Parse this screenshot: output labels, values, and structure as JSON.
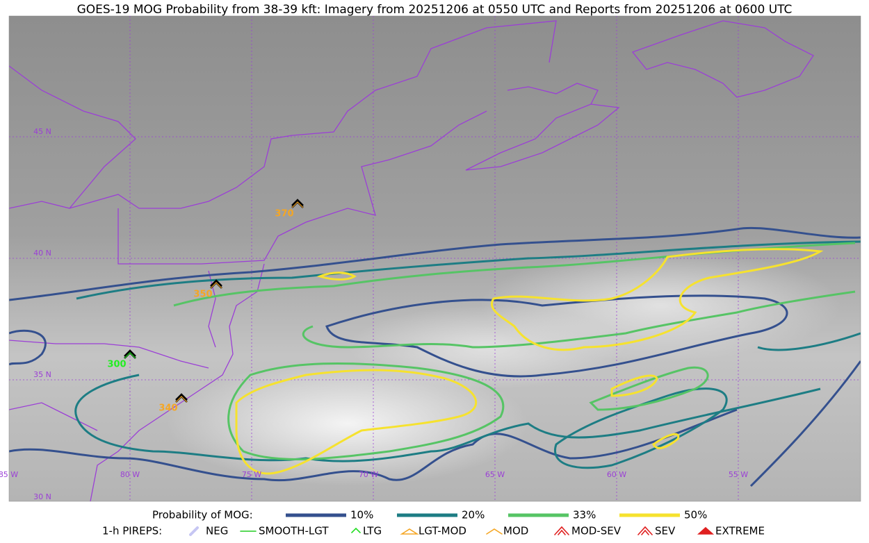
{
  "title": "GOES-19 MOG Probability from 38-39 kft: Imagery from 20251206 at 0550 UTC and Reports from 20251206 at 0600 UTC",
  "map": {
    "lat_labels": [
      "45 N",
      "40 N",
      "35 N",
      "30 N"
    ],
    "lon_labels": [
      "85 W",
      "80 W",
      "75 W",
      "70 W",
      "65 W",
      "60 W",
      "55 W"
    ],
    "pireps": [
      {
        "label": "370",
        "color": "#f5a623"
      },
      {
        "label": "350",
        "color": "#f5a623"
      },
      {
        "label": "300",
        "color": "#22ee22"
      },
      {
        "label": "340",
        "color": "#f5a623"
      }
    ]
  },
  "legend": {
    "mog_title": "Probability of MOG:",
    "mog_items": [
      {
        "label": "10%",
        "color": "#34508e"
      },
      {
        "label": "20%",
        "color": "#1d7d84"
      },
      {
        "label": "33%",
        "color": "#56c465"
      },
      {
        "label": "50%",
        "color": "#f6e22e"
      }
    ],
    "pirep_title": "1-h PIREPS:",
    "pirep_items": [
      {
        "label": "NEG",
        "color": "#b8b8f0"
      },
      {
        "label": "SMOOTH-LGT",
        "color": "#22cc22"
      },
      {
        "label": "LTG",
        "color": "#22dd22"
      },
      {
        "label": "LGT-MOD",
        "color": "#f5a623"
      },
      {
        "label": "MOD",
        "color": "#f5a623"
      },
      {
        "label": "MOD-SEV",
        "color": "#e02020"
      },
      {
        "label": "SEV",
        "color": "#e02020"
      },
      {
        "label": "EXTREME",
        "color": "#e02020"
      }
    ]
  }
}
